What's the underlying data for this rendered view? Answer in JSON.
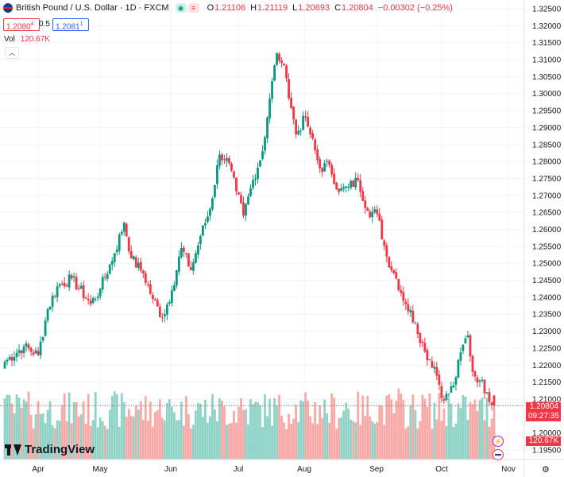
{
  "header": {
    "symbol_title": "British Pound / U.S. Dollar · 1D · FXCM",
    "eye_icon": "eye-icon",
    "menu_icon": "hamburger-menu-icon",
    "o_label": "O",
    "o_value": "1.21106",
    "h_label": "H",
    "h_value": "1.21119",
    "l_label": "L",
    "l_value": "1.20693",
    "c_label": "C",
    "c_value": "1.20804",
    "change": "−0.00302 (−0.25%)",
    "bid": "1.2080",
    "bid_sup": "4",
    "spread": "0.5",
    "ask": "1.2081",
    "ask_sup": "1",
    "vol_label": "Vol",
    "vol_value": "120.67K",
    "collapse_icon": "chevron-up-icon"
  },
  "price_tags": {
    "last_price": "1.20804",
    "countdown": "09:27:35",
    "last_volume": "120.67K"
  },
  "brand": {
    "name": "TradingView"
  },
  "colors": {
    "up": "#089981",
    "down": "#f23645",
    "vol_up": "#8fd3c7",
    "vol_down": "#f7a9a7",
    "grid": "#f0f3fa"
  },
  "chart_data": {
    "type": "candlestick",
    "title": "British Pound / U.S. Dollar · 1D · FXCM",
    "y_ticks": [
      "1.32500",
      "1.32000",
      "1.31500",
      "1.31000",
      "1.30500",
      "1.30000",
      "1.29500",
      "1.29000",
      "1.28500",
      "1.28000",
      "1.27500",
      "1.27000",
      "1.26500",
      "1.26000",
      "1.25500",
      "1.25000",
      "1.24500",
      "1.24000",
      "1.23500",
      "1.23000",
      "1.22500",
      "1.22000",
      "1.21500",
      "1.21000",
      "1.20500",
      "1.20000",
      "1.19500"
    ],
    "ylim": [
      1.1945,
      1.3265
    ],
    "x_ticks": [
      "Apr",
      "May",
      "Jun",
      "Jul",
      "Aug",
      "Sep",
      "Oct",
      "Nov"
    ],
    "anchors_close": [
      [
        0,
        1.221
      ],
      [
        8,
        1.2255
      ],
      [
        14,
        1.223
      ],
      [
        18,
        1.2365
      ],
      [
        22,
        1.2432
      ],
      [
        28,
        1.2455
      ],
      [
        36,
        1.238
      ],
      [
        40,
        1.2425
      ],
      [
        46,
        1.253
      ],
      [
        50,
        1.262
      ],
      [
        53,
        1.2515
      ],
      [
        58,
        1.247
      ],
      [
        62,
        1.2395
      ],
      [
        66,
        1.234
      ],
      [
        70,
        1.242
      ],
      [
        74,
        1.2545
      ],
      [
        78,
        1.248
      ],
      [
        82,
        1.258
      ],
      [
        86,
        1.266
      ],
      [
        90,
        1.282
      ],
      [
        93,
        1.281
      ],
      [
        97,
        1.2712
      ],
      [
        100,
        1.264
      ],
      [
        104,
        1.2745
      ],
      [
        108,
        1.283
      ],
      [
        111,
        1.2985
      ],
      [
        114,
        1.312
      ],
      [
        116,
        1.309
      ],
      [
        118,
        1.3045
      ],
      [
        122,
        1.288
      ],
      [
        126,
        1.293
      ],
      [
        128,
        1.288
      ],
      [
        132,
        1.278
      ],
      [
        136,
        1.279
      ],
      [
        140,
        1.271
      ],
      [
        144,
        1.2725
      ],
      [
        148,
        1.2745
      ],
      [
        152,
        1.2655
      ],
      [
        156,
        1.2645
      ],
      [
        160,
        1.252
      ],
      [
        164,
        1.2455
      ],
      [
        168,
        1.238
      ],
      [
        172,
        1.2325
      ],
      [
        176,
        1.224
      ],
      [
        180,
        1.2195
      ],
      [
        184,
        1.2095
      ],
      [
        188,
        1.214
      ],
      [
        192,
        1.226
      ],
      [
        194,
        1.2288
      ],
      [
        196,
        1.218
      ],
      [
        199,
        1.2155
      ],
      [
        202,
        1.212
      ],
      [
        205,
        1.208
      ]
    ],
    "last": {
      "open": 1.21106,
      "high": 1.21119,
      "low": 1.20693,
      "close": 1.20804,
      "volume": "120.67K"
    }
  }
}
